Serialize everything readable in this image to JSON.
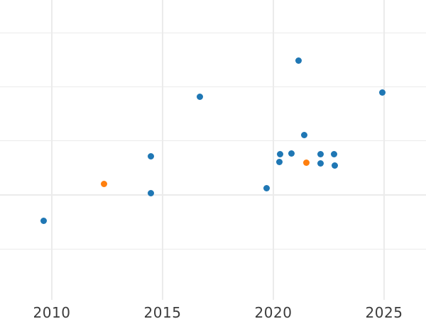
{
  "chart_data": {
    "type": "scatter",
    "title": "",
    "subtitle": "",
    "xlabel": "",
    "ylabel": "",
    "legend": "none",
    "grid": true,
    "background_color": "#ffffff",
    "grid_color": "#ebebeb",
    "tick_label_color": "#3b3b3b",
    "x_ticks": [
      2010,
      2015,
      2020,
      2025
    ],
    "x_tick_labels": [
      "2010",
      "2015",
      "2020",
      "2025"
    ],
    "xlim": [
      2007.66,
      2026.9
    ],
    "y_axis_tick_labels_visible": false,
    "y_unit": "unlabeled-gridline-units (bottom visible gridline = 0, one gridline spacing = 1)",
    "y_gridlines_units": [
      0,
      1,
      2,
      3,
      4
    ],
    "ylim_gridline_units": [
      -0.94,
      4.61
    ],
    "series": [
      {
        "name": "blue",
        "color": "#1f77b4",
        "points": [
          {
            "x": 2009.64,
            "y": 0.52
          },
          {
            "x": 2014.48,
            "y": 1.03
          },
          {
            "x": 2014.48,
            "y": 1.72
          },
          {
            "x": 2016.69,
            "y": 2.81
          },
          {
            "x": 2019.68,
            "y": 1.12
          },
          {
            "x": 2020.26,
            "y": 1.61
          },
          {
            "x": 2020.32,
            "y": 1.76
          },
          {
            "x": 2020.82,
            "y": 1.77
          },
          {
            "x": 2021.14,
            "y": 3.49
          },
          {
            "x": 2021.4,
            "y": 2.11
          },
          {
            "x": 2022.14,
            "y": 1.76
          },
          {
            "x": 2022.14,
            "y": 1.58
          },
          {
            "x": 2022.75,
            "y": 1.76
          },
          {
            "x": 2022.78,
            "y": 1.54
          },
          {
            "x": 2024.93,
            "y": 2.9
          }
        ]
      },
      {
        "name": "orange",
        "color": "#ff7f0e",
        "points": [
          {
            "x": 2012.36,
            "y": 1.2
          },
          {
            "x": 2021.5,
            "y": 1.6
          }
        ]
      }
    ]
  }
}
